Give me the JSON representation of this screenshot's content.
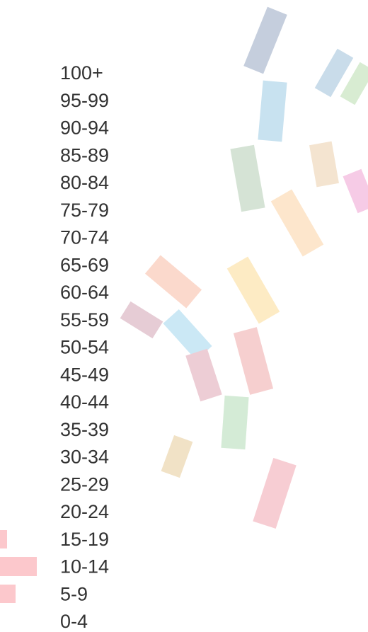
{
  "age_groups": [
    "100+",
    "95-99",
    "90-94",
    "85-89",
    "80-84",
    "75-79",
    "70-74",
    "65-69",
    "60-64",
    "55-59",
    "50-54",
    "45-49",
    "40-44",
    "35-39",
    "30-34",
    "25-29",
    "20-24",
    "15-19",
    "10-14",
    "5-9",
    "0-4"
  ]
}
